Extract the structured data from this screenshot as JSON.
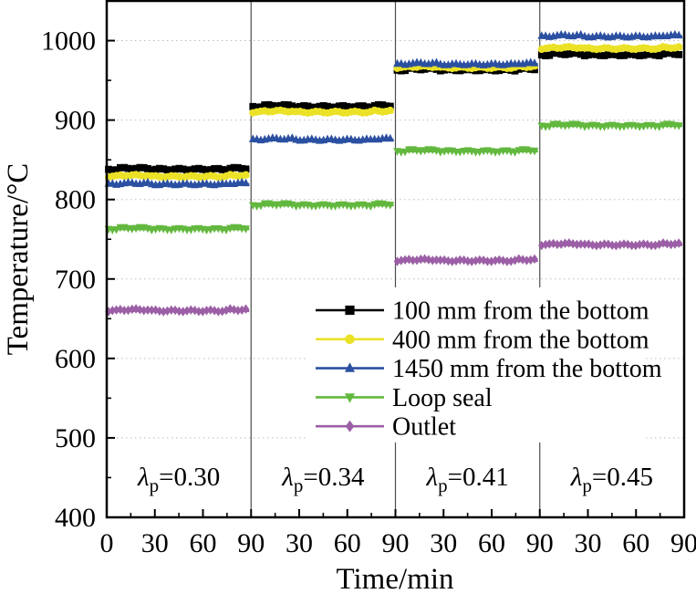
{
  "chart_data": {
    "type": "line",
    "title": "",
    "xlabel": "Time/min",
    "ylabel": "Temperature/°C",
    "ylim": [
      400,
      1050
    ],
    "y_major_ticks": [
      400,
      500,
      600,
      700,
      800,
      900,
      1000
    ],
    "y_minor_ticks": [
      450,
      550,
      650,
      750,
      850,
      950
    ],
    "gridlines_at": [
      500,
      600,
      700,
      800,
      900,
      1000
    ],
    "grid_style": "dotted-horizontal",
    "panel_minutes": 90,
    "x_major_ticks": [
      0,
      30,
      60,
      90
    ],
    "x_minor_ticks": [
      15,
      45,
      75
    ],
    "x_tick_labels_first_panel": [
      "0",
      "30",
      "60",
      "90"
    ],
    "x_tick_labels_other_panels": [
      "30",
      "60",
      "90"
    ],
    "panels": [
      {
        "sym": "λ",
        "sub": "p",
        "eq": "=0.30"
      },
      {
        "sym": "λ",
        "sub": "p",
        "eq": "=0.34"
      },
      {
        "sym": "λ",
        "sub": "p",
        "eq": "=0.41"
      },
      {
        "sym": "λ",
        "sub": "p",
        "eq": "=0.45"
      }
    ],
    "series": [
      {
        "name": "100 mm from the bottom",
        "color": "#000000",
        "marker": "square",
        "values": [
          838,
          917,
          963,
          982
        ]
      },
      {
        "name": "400 mm from the bottom",
        "color": "#ebe227",
        "marker": "circle",
        "values": [
          829,
          910,
          966,
          990
        ]
      },
      {
        "name": "1450 mm from the bottom",
        "color": "#2b50a1",
        "marker": "triangle-up",
        "values": [
          819,
          875,
          970,
          1005
        ]
      },
      {
        "name": "Loop seal",
        "color": "#62b83e",
        "marker": "triangle-down",
        "values": [
          763,
          793,
          861,
          893
        ]
      },
      {
        "name": "Outlet",
        "color": "#9c5fa6",
        "marker": "diamond",
        "values": [
          660,
          null,
          723,
          743
        ]
      }
    ],
    "legend_position": "center",
    "colors": {
      "frame": "#000000",
      "gridline": "#bdbdbd",
      "panel_divider": "#4d4d4d",
      "background": "#ffffff"
    }
  }
}
